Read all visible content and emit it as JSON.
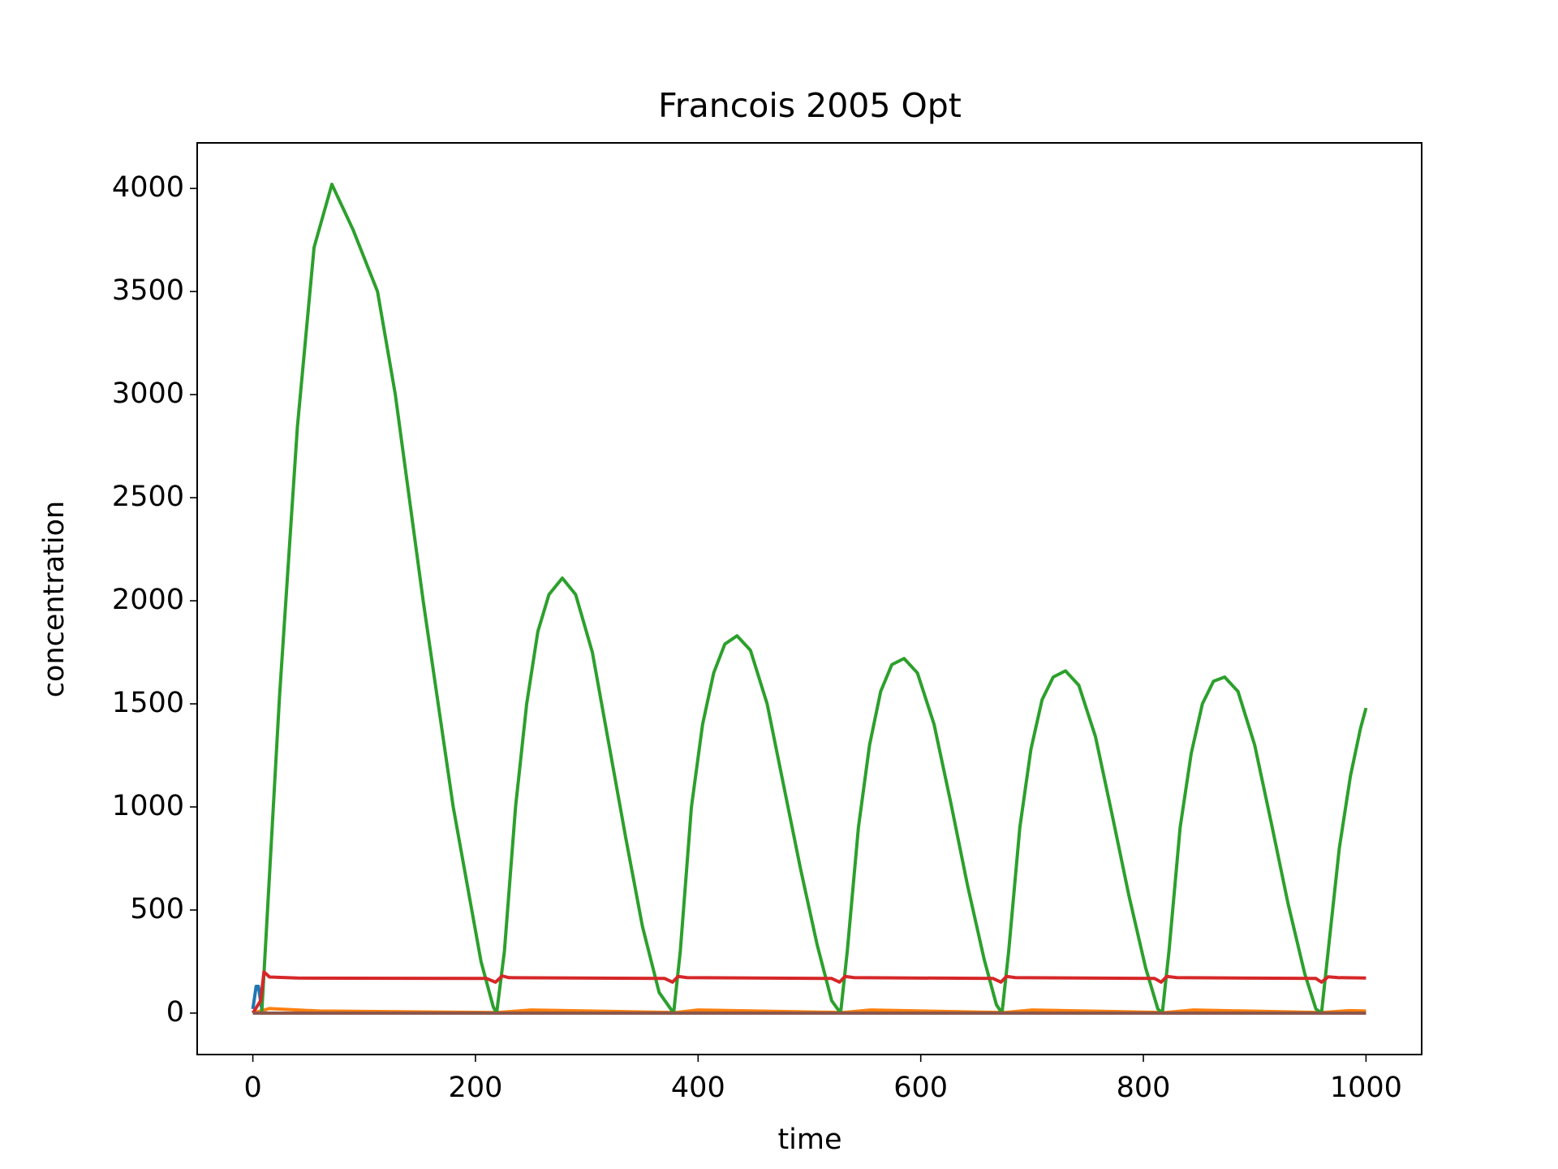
{
  "chart_data": {
    "type": "line",
    "title": "Francois 2005 Opt",
    "x_label": "time",
    "y_label": "concentration",
    "xlim": [
      -50,
      1050
    ],
    "ylim": [
      -201,
      4221
    ],
    "xticks": [
      0,
      200,
      400,
      600,
      800,
      1000
    ],
    "yticks": [
      0,
      500,
      1000,
      1500,
      2000,
      2500,
      3000,
      3500,
      4000
    ],
    "grid": false,
    "series": [
      {
        "color": "#1f77b4",
        "x": [
          0,
          3,
          5,
          8,
          12,
          1000
        ],
        "values": [
          20,
          130,
          130,
          20,
          0,
          0
        ]
      },
      {
        "color": "#ff7f0e",
        "x": [
          0,
          15,
          60,
          220,
          250,
          380,
          400,
          530,
          555,
          675,
          700,
          820,
          845,
          960,
          985,
          1000
        ],
        "values": [
          0,
          22,
          10,
          3,
          15,
          3,
          15,
          3,
          15,
          3,
          15,
          3,
          15,
          3,
          12,
          10
        ]
      },
      {
        "color": "#2ca02c",
        "x": [
          0,
          8,
          24,
          40,
          55,
          71,
          90,
          112,
          128,
          153,
          180,
          205,
          216,
          219,
          226,
          236,
          246,
          256,
          266,
          278,
          290,
          305,
          320,
          335,
          350,
          365,
          378,
          384,
          394,
          404,
          414,
          424,
          435,
          447,
          462,
          477,
          492,
          507,
          520,
          528,
          534,
          544,
          554,
          564,
          574,
          585,
          597,
          612,
          627,
          642,
          657,
          668,
          673,
          679,
          689,
          699,
          709,
          719,
          730,
          742,
          757,
          772,
          787,
          802,
          813,
          817,
          823,
          833,
          843,
          853,
          863,
          873,
          885,
          900,
          915,
          930,
          945,
          955,
          960,
          966,
          976,
          986,
          995,
          1000
        ],
        "values": [
          0,
          0,
          1539,
          2842,
          3714,
          4020,
          3800,
          3500,
          3000,
          2000,
          1000,
          250,
          30,
          0,
          300,
          1000,
          1500,
          1850,
          2030,
          2110,
          2030,
          1750,
          1300,
          850,
          420,
          100,
          0,
          300,
          1000,
          1400,
          1650,
          1790,
          1830,
          1760,
          1500,
          1100,
          700,
          330,
          60,
          0,
          300,
          900,
          1300,
          1560,
          1690,
          1720,
          1650,
          1400,
          1020,
          620,
          260,
          40,
          0,
          300,
          900,
          1280,
          1520,
          1630,
          1660,
          1590,
          1340,
          960,
          570,
          220,
          20,
          0,
          300,
          900,
          1260,
          1500,
          1610,
          1630,
          1560,
          1300,
          920,
          530,
          190,
          20,
          0,
          300,
          800,
          1150,
          1380,
          1480
        ]
      },
      {
        "color": "#d62728",
        "x": [
          0,
          7,
          10,
          15,
          40,
          210,
          218,
          224,
          230,
          370,
          377,
          382,
          390,
          520,
          527,
          532,
          540,
          665,
          672,
          677,
          685,
          810,
          816,
          821,
          830,
          955,
          960,
          966,
          975,
          1000
        ],
        "values": [
          0,
          60,
          200,
          175,
          170,
          168,
          150,
          180,
          172,
          168,
          150,
          178,
          172,
          168,
          150,
          178,
          172,
          168,
          150,
          178,
          172,
          168,
          150,
          178,
          172,
          168,
          150,
          176,
          172,
          170
        ]
      },
      {
        "color": "#8c564b",
        "x": [
          0,
          1000
        ],
        "values": [
          0,
          0
        ]
      }
    ]
  }
}
